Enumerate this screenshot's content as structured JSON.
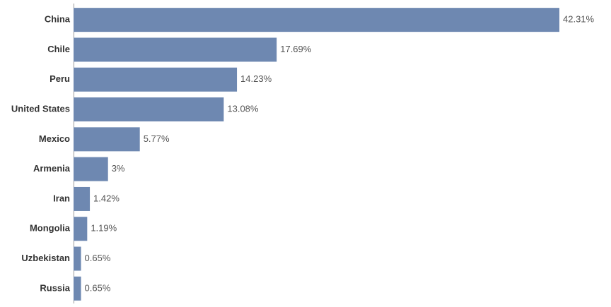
{
  "chart_data": {
    "type": "bar",
    "orientation": "horizontal",
    "categories": [
      "China",
      "Chile",
      "Peru",
      "United States",
      "Mexico",
      "Armenia",
      "Iran",
      "Mongolia",
      "Uzbekistan",
      "Russia"
    ],
    "values": [
      42.31,
      17.69,
      14.23,
      13.08,
      5.77,
      3,
      1.42,
      1.19,
      0.65,
      0.65
    ],
    "value_labels": [
      "42.31%",
      "17.69%",
      "14.23%",
      "13.08%",
      "5.77%",
      "3%",
      "1.42%",
      "1.19%",
      "0.65%",
      "0.65%"
    ],
    "color": "#6e88b1"
  }
}
